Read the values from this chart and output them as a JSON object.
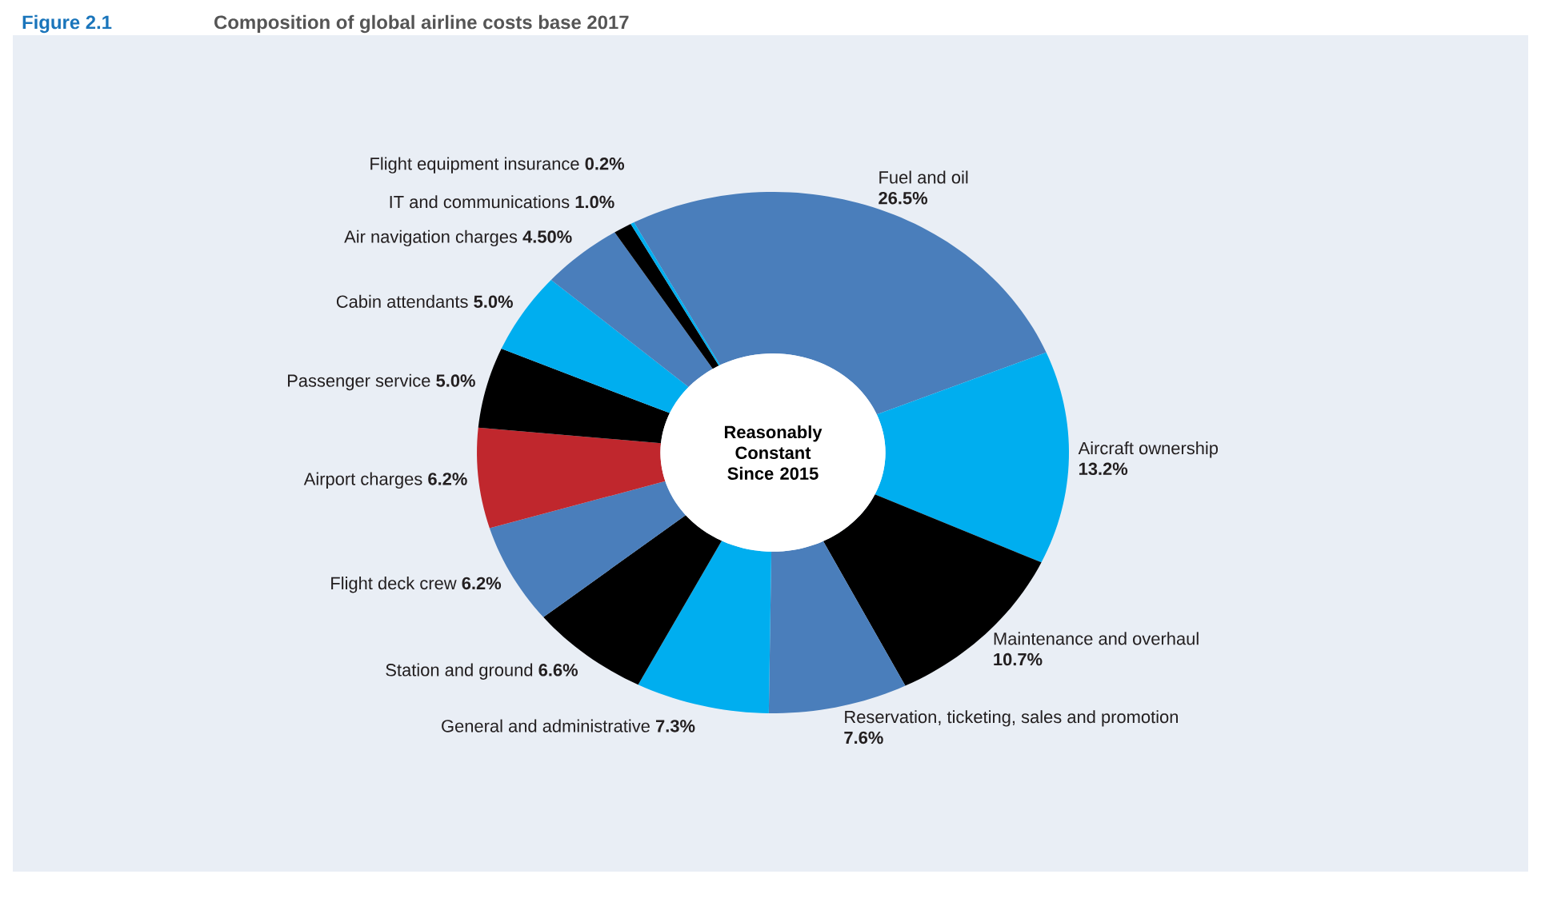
{
  "chart_data": {
    "type": "donut",
    "title": "Figure 2.1",
    "subtitle": "Composition of global airline costs base 2017",
    "categories": [
      "Fuel and oil",
      "Aircraft ownership",
      "Maintenance and overhaul",
      "Reservation, ticketing, sales and promotion",
      "General and administrative",
      "Station and ground",
      "Flight deck crew",
      "Airport charges",
      "Passenger service",
      "Cabin attendants",
      "Air navigation charges",
      "IT and communications",
      "Flight equipment insurance"
    ],
    "values": [
      26.5,
      13.2,
      10.7,
      7.6,
      7.3,
      6.6,
      6.2,
      6.2,
      5.0,
      5.0,
      4.5,
      1.0,
      0.2
    ],
    "value_labels": [
      "26.5%",
      "13.2%",
      "10.7%",
      "7.6%",
      "7.3%",
      "6.6%",
      "6.2%",
      "6.2%",
      "5.0%",
      "5.0%",
      "4.50%",
      "1.0%",
      "0.2%"
    ],
    "colors": [
      "#4a7ebb",
      "#00aeef",
      "#000000",
      "#4a7ebb",
      "#00aeef",
      "#000000",
      "#4a7ebb",
      "#c0272d",
      "#000000",
      "#00aeef",
      "#4a7ebb",
      "#000000",
      "#00aeef"
    ],
    "annotations": [
      "Reasonably Constant Since 2015"
    ]
  }
}
